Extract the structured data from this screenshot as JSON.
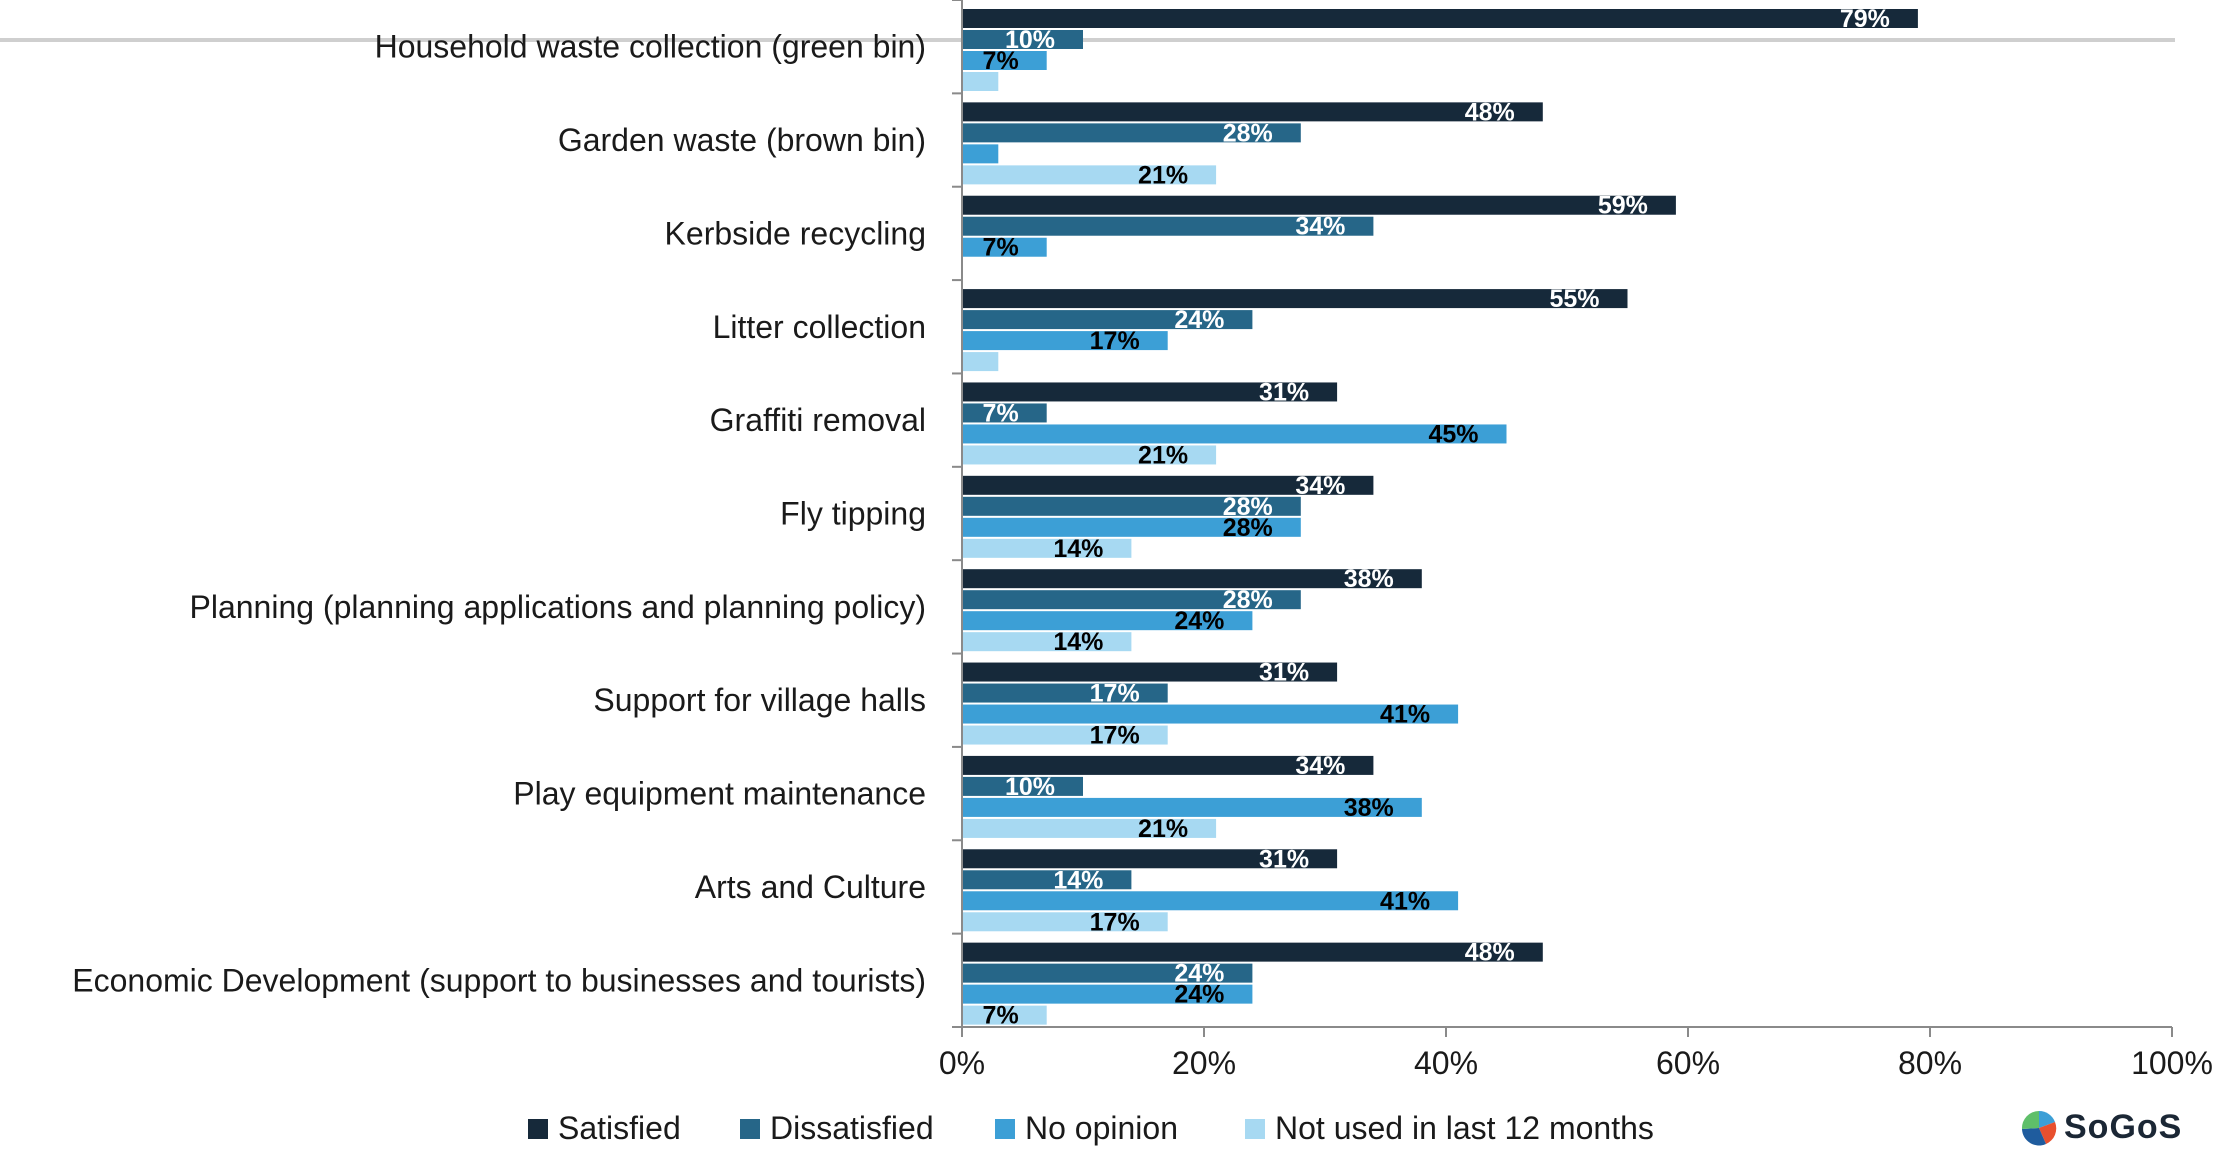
{
  "chart_data": {
    "type": "bar",
    "orientation": "horizontal",
    "categories": [
      "Household waste collection (green bin)",
      "Garden waste (brown bin)",
      "Kerbside recycling",
      "Litter collection",
      "Graffiti removal",
      "Fly tipping",
      "Planning (planning applications and planning policy)",
      "Support for village halls",
      "Play equipment maintenance",
      "Arts and Culture",
      "Economic Development (support to businesses and tourists)"
    ],
    "series": [
      {
        "name": "Satisfied",
        "color": "#16293a",
        "label_color": "#ffffff",
        "values": [
          79,
          48,
          59,
          55,
          31,
          34,
          38,
          31,
          34,
          31,
          48
        ],
        "labels": [
          "79%",
          "48%",
          "59%",
          "55%",
          "31%",
          "34%",
          "38%",
          "31%",
          "34%",
          "31%",
          "48%"
        ]
      },
      {
        "name": "Dissatisfied",
        "color": "#266688",
        "label_color": "#ffffff",
        "values": [
          10,
          28,
          34,
          24,
          7,
          28,
          28,
          17,
          10,
          14,
          24
        ],
        "labels": [
          "10%",
          "28%",
          "34%",
          "24%",
          "7%",
          "28%",
          "28%",
          "17%",
          "10%",
          "14%",
          "24%"
        ]
      },
      {
        "name": "No opinion",
        "color": "#3c9fd6",
        "label_color": "#000000",
        "values": [
          7,
          3,
          7,
          17,
          45,
          28,
          24,
          41,
          38,
          41,
          24
        ],
        "labels": [
          "7%",
          "",
          "7%",
          "17%",
          "45%",
          "28%",
          "24%",
          "41%",
          "38%",
          "41%",
          "24%"
        ]
      },
      {
        "name": "Not used in last 12 months",
        "color": "#a7d9f2",
        "label_color": "#000000",
        "values": [
          3,
          21,
          0,
          3,
          21,
          14,
          14,
          17,
          21,
          17,
          7
        ],
        "labels": [
          "",
          "21%",
          "",
          "",
          "21%",
          "14%",
          "14%",
          "17%",
          "21%",
          "17%",
          "7%"
        ]
      }
    ],
    "x_ticks": [
      "0%",
      "20%",
      "40%",
      "60%",
      "80%",
      "100%"
    ],
    "xlim": [
      0,
      100
    ],
    "grid": false,
    "legend_position": "bottom"
  },
  "logo": {
    "text": "SoGoS"
  }
}
